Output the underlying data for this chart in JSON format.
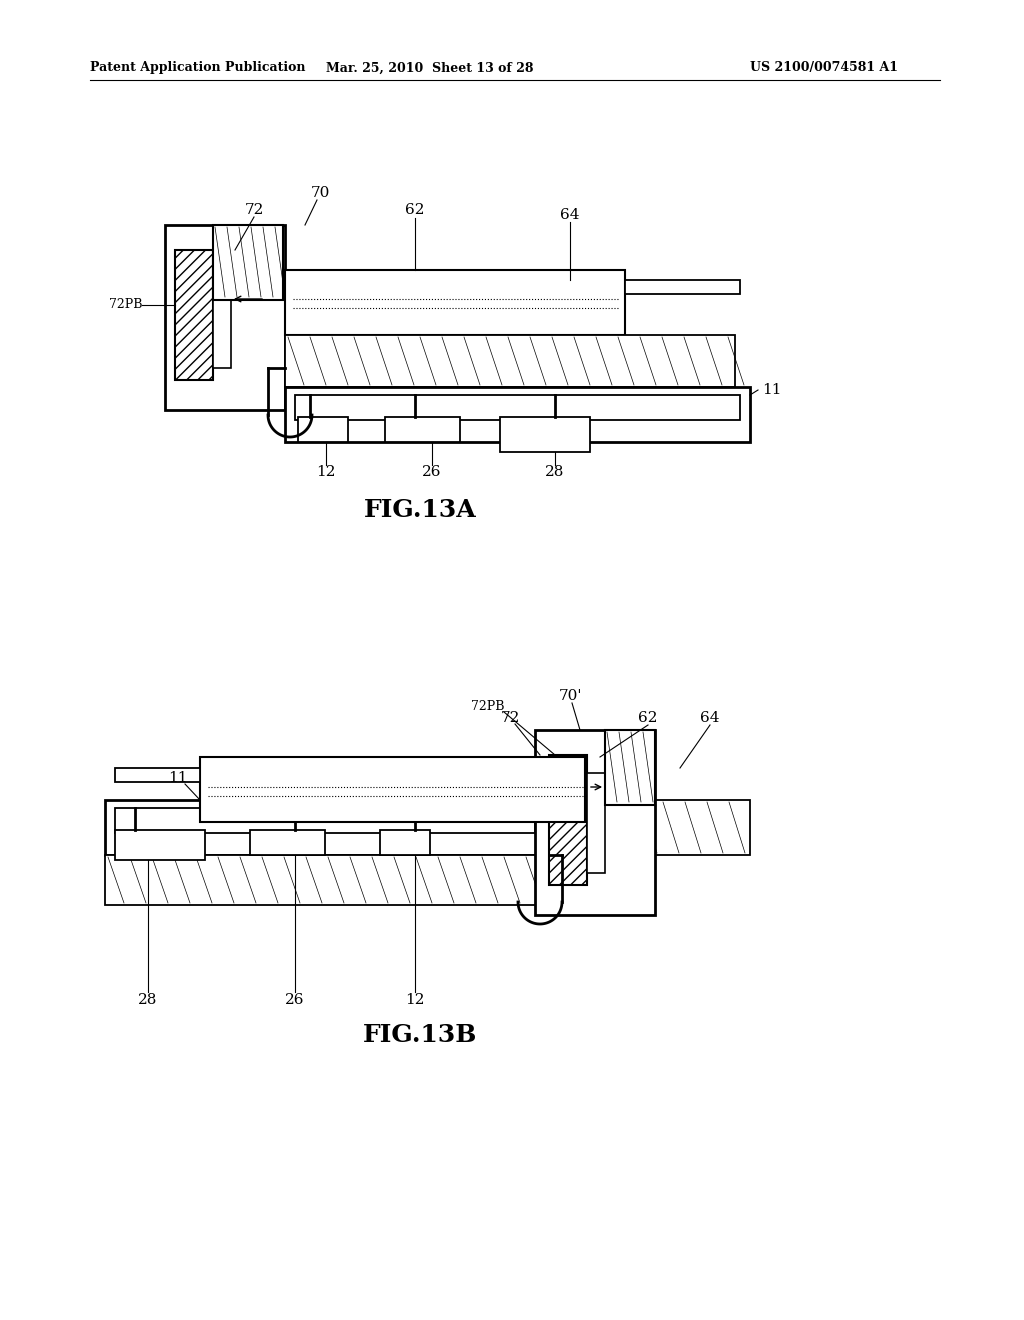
{
  "bg_color": "#ffffff",
  "header_left": "Patent Application Publication",
  "header_mid": "Mar. 25, 2010  Sheet 13 of 28",
  "header_right": "US 2100/0074581 A1",
  "fig_title_a": "FIG.13A",
  "fig_title_b": "FIG.13B"
}
